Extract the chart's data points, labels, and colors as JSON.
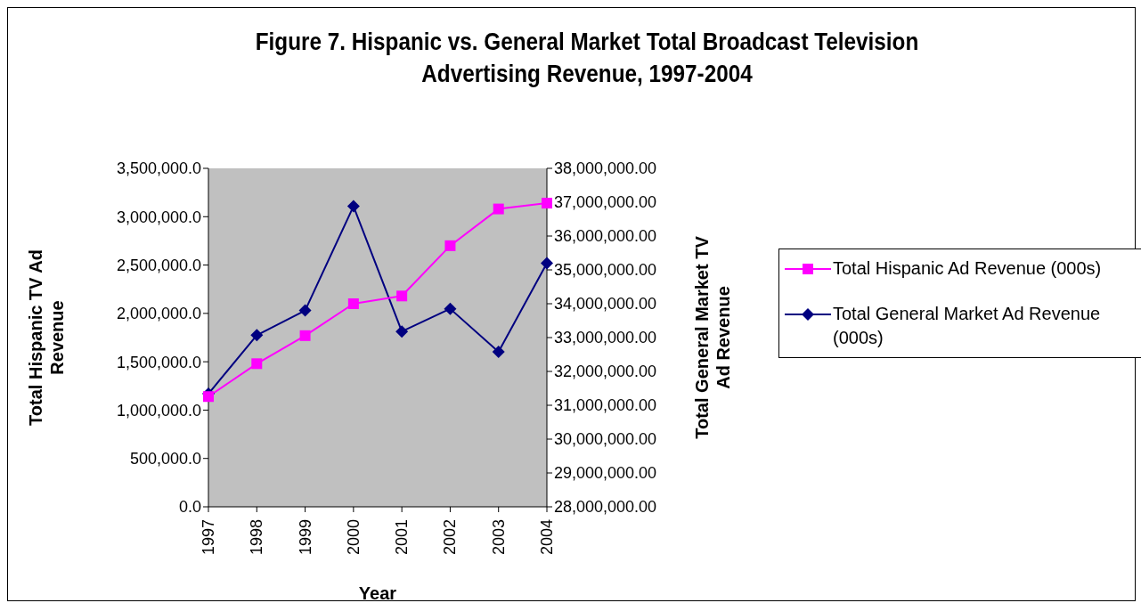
{
  "chart_data": {
    "type": "line",
    "title": "Figure 7. Hispanic vs. General Market Total Broadcast Television Advertising Revenue, 1997-2004",
    "xlabel": "Year",
    "ylabel": "Total Hispanic TV Ad Revenue",
    "y2label": "Total General Market TV Ad Revenue",
    "categories": [
      "1997",
      "1998",
      "1999",
      "2000",
      "2001",
      "2002",
      "2003",
      "2004"
    ],
    "series": [
      {
        "name": "Total Hispanic Ad Revenue (000s)",
        "color": "#ff00ff",
        "marker": "square",
        "values": [
          1140000,
          1480000,
          1770000,
          2100000,
          2180000,
          2700000,
          3080000,
          3140000
        ]
      },
      {
        "name": "Total General Market Ad Revenue (000s)",
        "color": "#000080",
        "marker": "diamond",
        "axis": "y2",
        "values": [
          31340000,
          33070000,
          33800000,
          36880000,
          33180000,
          33850000,
          32580000,
          35200000
        ]
      }
    ],
    "ylim": [
      0,
      3500000
    ],
    "yticks": [
      {
        "value": 0,
        "label": "0.0"
      },
      {
        "value": 500000,
        "label": "500,000.0"
      },
      {
        "value": 1000000,
        "label": "1,000,000.0"
      },
      {
        "value": 1500000,
        "label": "1,500,000.0"
      },
      {
        "value": 2000000,
        "label": "2,000,000.0"
      },
      {
        "value": 2500000,
        "label": "2,500,000.0"
      },
      {
        "value": 3000000,
        "label": "3,000,000.0"
      },
      {
        "value": 3500000,
        "label": "3,500,000.0"
      }
    ],
    "y2lim": [
      28000000,
      38000000
    ],
    "y2ticks": [
      {
        "value": 28000000,
        "label": "28,000,000.00"
      },
      {
        "value": 29000000,
        "label": "29,000,000.00"
      },
      {
        "value": 30000000,
        "label": "30,000,000.00"
      },
      {
        "value": 31000000,
        "label": "31,000,000.00"
      },
      {
        "value": 32000000,
        "label": "32,000,000.00"
      },
      {
        "value": 33000000,
        "label": "33,000,000.00"
      },
      {
        "value": 34000000,
        "label": "34,000,000.00"
      },
      {
        "value": 35000000,
        "label": "35,000,000.00"
      },
      {
        "value": 36000000,
        "label": "36,000,000.00"
      },
      {
        "value": 37000000,
        "label": "37,000,000.00"
      },
      {
        "value": 38000000,
        "label": "38,000,000.00"
      }
    ],
    "grid": false,
    "legend": "right",
    "line_style": "solid"
  }
}
